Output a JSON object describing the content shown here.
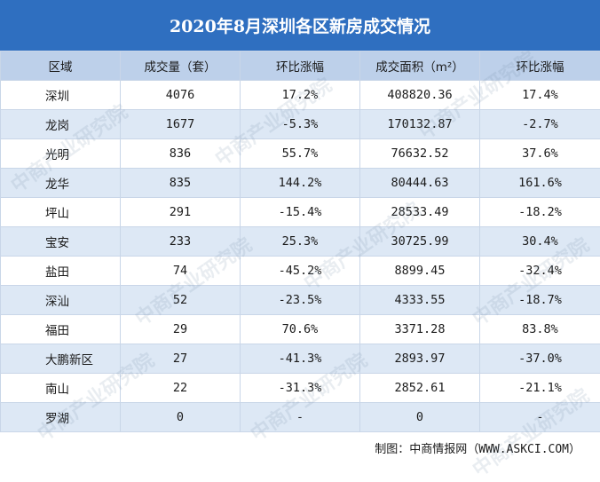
{
  "title": "2020年8月深圳各区新房成交情况",
  "header": {
    "col1": "区域",
    "col2": "成交量（套）",
    "col3": "环比涨幅",
    "col4": "成交面积（m²）",
    "col5": "环比涨幅"
  },
  "rows": [
    {
      "region": "深圳",
      "volume": "4076",
      "volume_change": "17.2%",
      "area": "408820.36",
      "area_change": "17.4%"
    },
    {
      "region": "龙岗",
      "volume": "1677",
      "volume_change": "-5.3%",
      "area": "170132.87",
      "area_change": "-2.7%"
    },
    {
      "region": "光明",
      "volume": "836",
      "volume_change": "55.7%",
      "area": "76632.52",
      "area_change": "37.6%"
    },
    {
      "region": "龙华",
      "volume": "835",
      "volume_change": "144.2%",
      "area": "80444.63",
      "area_change": "161.6%"
    },
    {
      "region": "坪山",
      "volume": "291",
      "volume_change": "-15.4%",
      "area": "28533.49",
      "area_change": "-18.2%"
    },
    {
      "region": "宝安",
      "volume": "233",
      "volume_change": "25.3%",
      "area": "30725.99",
      "area_change": "30.4%"
    },
    {
      "region": "盐田",
      "volume": "74",
      "volume_change": "-45.2%",
      "area": "8899.45",
      "area_change": "-32.4%"
    },
    {
      "region": "深汕",
      "volume": "52",
      "volume_change": "-23.5%",
      "area": "4333.55",
      "area_change": "-18.7%"
    },
    {
      "region": "福田",
      "volume": "29",
      "volume_change": "70.6%",
      "area": "3371.28",
      "area_change": "83.8%"
    },
    {
      "region": "大鹏新区",
      "volume": "27",
      "volume_change": "-41.3%",
      "area": "2893.97",
      "area_change": "-37.0%"
    },
    {
      "region": "南山",
      "volume": "22",
      "volume_change": "-31.3%",
      "area": "2852.61",
      "area_change": "-21.1%"
    },
    {
      "region": "罗湖",
      "volume": "0",
      "volume_change": "-",
      "area": "0",
      "area_change": "-"
    }
  ],
  "source": "制图：中商情报网（WWW.ASKCI.COM）",
  "watermark": "中商产业研究院",
  "colors": {
    "title_bg": "#2f6fc0",
    "header_bg": "#bdd0ea",
    "stripe_bg": "#dde8f5"
  }
}
